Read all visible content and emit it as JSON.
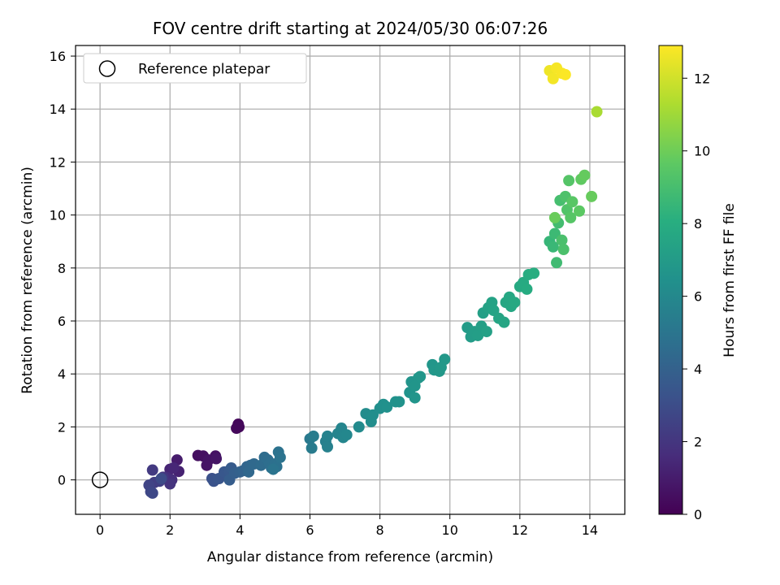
{
  "chart_data": {
    "type": "scatter",
    "title": "FOV centre drift starting at 2024/05/30 06:07:26",
    "xlabel": "Angular distance from reference (arcmin)",
    "ylabel": "Rotation from reference (arcmin)",
    "xlim": [
      -0.7,
      15
    ],
    "ylim": [
      -1.3,
      16.4
    ],
    "xticks": [
      0,
      2,
      4,
      6,
      8,
      10,
      12,
      14
    ],
    "yticks": [
      0,
      2,
      4,
      6,
      8,
      10,
      12,
      14,
      16
    ],
    "grid": true,
    "legend": {
      "placement": "top-left",
      "entries": [
        "Reference platepar"
      ]
    },
    "reference_point": {
      "x": 0,
      "y": 0,
      "label": "Reference platepar"
    },
    "colorbar": {
      "label": "Hours from first FF file",
      "range": [
        0,
        12.9
      ],
      "ticks": [
        0,
        2,
        4,
        6,
        8,
        10,
        12
      ],
      "colormap": "viridis"
    },
    "points": [
      {
        "x": 3.95,
        "y": 2.1,
        "c": 0.2
      },
      {
        "x": 3.9,
        "y": 1.95,
        "c": 0.3
      },
      {
        "x": 3.97,
        "y": 2.0,
        "c": 0.25
      },
      {
        "x": 2.8,
        "y": 0.92,
        "c": 0.5
      },
      {
        "x": 2.95,
        "y": 0.9,
        "c": 0.55
      },
      {
        "x": 3.1,
        "y": 0.75,
        "c": 0.65
      },
      {
        "x": 3.05,
        "y": 0.55,
        "c": 0.7
      },
      {
        "x": 3.3,
        "y": 0.9,
        "c": 0.6
      },
      {
        "x": 3.32,
        "y": 0.8,
        "c": 0.75
      },
      {
        "x": 2.2,
        "y": 0.75,
        "c": 1.0
      },
      {
        "x": 2.25,
        "y": 0.32,
        "c": 1.2
      },
      {
        "x": 2.0,
        "y": 0.4,
        "c": 1.3
      },
      {
        "x": 2.1,
        "y": 0.45,
        "c": 1.4
      },
      {
        "x": 1.9,
        "y": 0.1,
        "c": 1.6
      },
      {
        "x": 2.05,
        "y": 0.0,
        "c": 1.7
      },
      {
        "x": 2.0,
        "y": -0.15,
        "c": 1.9
      },
      {
        "x": 1.8,
        "y": 0.1,
        "c": 2.0
      },
      {
        "x": 1.5,
        "y": 0.37,
        "c": 2.2
      },
      {
        "x": 1.55,
        "y": -0.1,
        "c": 2.3
      },
      {
        "x": 1.7,
        "y": -0.05,
        "c": 2.4
      },
      {
        "x": 1.4,
        "y": -0.2,
        "c": 2.6
      },
      {
        "x": 1.45,
        "y": -0.45,
        "c": 2.7
      },
      {
        "x": 1.5,
        "y": -0.5,
        "c": 2.8
      },
      {
        "x": 1.75,
        "y": 0.05,
        "c": 2.9
      },
      {
        "x": 3.2,
        "y": 0.05,
        "c": 3.2
      },
      {
        "x": 3.25,
        "y": -0.05,
        "c": 3.3
      },
      {
        "x": 3.4,
        "y": 0.05,
        "c": 3.4
      },
      {
        "x": 3.55,
        "y": 0.3,
        "c": 3.5
      },
      {
        "x": 3.7,
        "y": 0.35,
        "c": 3.6
      },
      {
        "x": 3.75,
        "y": 0.45,
        "c": 3.7
      },
      {
        "x": 3.7,
        "y": 0.0,
        "c": 3.8
      },
      {
        "x": 3.85,
        "y": 0.25,
        "c": 3.9
      },
      {
        "x": 4.0,
        "y": 0.3,
        "c": 4.0
      },
      {
        "x": 4.1,
        "y": 0.35,
        "c": 4.1
      },
      {
        "x": 4.2,
        "y": 0.5,
        "c": 4.2
      },
      {
        "x": 4.3,
        "y": 0.55,
        "c": 4.3
      },
      {
        "x": 4.25,
        "y": 0.3,
        "c": 4.35
      },
      {
        "x": 4.4,
        "y": 0.6,
        "c": 4.4
      },
      {
        "x": 4.6,
        "y": 0.55,
        "c": 4.5
      },
      {
        "x": 4.7,
        "y": 0.85,
        "c": 4.55
      },
      {
        "x": 4.8,
        "y": 0.75,
        "c": 4.6
      },
      {
        "x": 4.85,
        "y": 0.6,
        "c": 4.65
      },
      {
        "x": 4.9,
        "y": 0.45,
        "c": 4.7
      },
      {
        "x": 5.0,
        "y": 0.6,
        "c": 4.75
      },
      {
        "x": 5.05,
        "y": 0.5,
        "c": 4.8
      },
      {
        "x": 5.1,
        "y": 1.05,
        "c": 4.85
      },
      {
        "x": 5.15,
        "y": 0.85,
        "c": 4.9
      },
      {
        "x": 4.95,
        "y": 0.4,
        "c": 4.95
      },
      {
        "x": 6.0,
        "y": 1.55,
        "c": 5.2
      },
      {
        "x": 6.05,
        "y": 1.2,
        "c": 5.3
      },
      {
        "x": 6.1,
        "y": 1.65,
        "c": 5.35
      },
      {
        "x": 6.45,
        "y": 1.45,
        "c": 5.5
      },
      {
        "x": 6.5,
        "y": 1.25,
        "c": 5.6
      },
      {
        "x": 6.5,
        "y": 1.65,
        "c": 5.65
      },
      {
        "x": 6.8,
        "y": 1.75,
        "c": 5.75
      },
      {
        "x": 6.9,
        "y": 1.95,
        "c": 5.85
      },
      {
        "x": 6.95,
        "y": 1.6,
        "c": 5.9
      },
      {
        "x": 7.05,
        "y": 1.7,
        "c": 5.95
      },
      {
        "x": 7.4,
        "y": 2.0,
        "c": 6.1
      },
      {
        "x": 7.6,
        "y": 2.5,
        "c": 6.2
      },
      {
        "x": 7.75,
        "y": 2.2,
        "c": 6.25
      },
      {
        "x": 7.8,
        "y": 2.45,
        "c": 6.3
      },
      {
        "x": 8.0,
        "y": 2.7,
        "c": 6.35
      },
      {
        "x": 8.1,
        "y": 2.85,
        "c": 6.4
      },
      {
        "x": 8.2,
        "y": 2.75,
        "c": 6.45
      },
      {
        "x": 8.45,
        "y": 2.95,
        "c": 6.5
      },
      {
        "x": 8.55,
        "y": 2.95,
        "c": 6.52
      },
      {
        "x": 8.85,
        "y": 3.3,
        "c": 6.55
      },
      {
        "x": 8.9,
        "y": 3.7,
        "c": 6.6
      },
      {
        "x": 9.0,
        "y": 3.1,
        "c": 6.65
      },
      {
        "x": 9.0,
        "y": 3.55,
        "c": 6.68
      },
      {
        "x": 9.1,
        "y": 3.85,
        "c": 6.7
      },
      {
        "x": 9.15,
        "y": 3.9,
        "c": 6.72
      },
      {
        "x": 9.5,
        "y": 4.35,
        "c": 6.75
      },
      {
        "x": 9.55,
        "y": 4.15,
        "c": 6.78
      },
      {
        "x": 9.7,
        "y": 4.1,
        "c": 6.8
      },
      {
        "x": 9.75,
        "y": 4.25,
        "c": 6.82
      },
      {
        "x": 9.85,
        "y": 4.55,
        "c": 6.85
      },
      {
        "x": 10.5,
        "y": 5.75,
        "c": 7.0
      },
      {
        "x": 10.6,
        "y": 5.4,
        "c": 7.05
      },
      {
        "x": 10.7,
        "y": 5.6,
        "c": 7.1
      },
      {
        "x": 10.8,
        "y": 5.45,
        "c": 7.15
      },
      {
        "x": 10.9,
        "y": 5.8,
        "c": 7.2
      },
      {
        "x": 10.95,
        "y": 6.3,
        "c": 7.25
      },
      {
        "x": 11.05,
        "y": 5.6,
        "c": 7.3
      },
      {
        "x": 11.1,
        "y": 6.5,
        "c": 7.35
      },
      {
        "x": 11.2,
        "y": 6.7,
        "c": 7.4
      },
      {
        "x": 11.25,
        "y": 6.4,
        "c": 7.45
      },
      {
        "x": 11.4,
        "y": 6.1,
        "c": 7.5
      },
      {
        "x": 11.55,
        "y": 5.95,
        "c": 7.55
      },
      {
        "x": 11.6,
        "y": 6.7,
        "c": 7.6
      },
      {
        "x": 11.7,
        "y": 6.9,
        "c": 7.65
      },
      {
        "x": 11.75,
        "y": 6.55,
        "c": 7.7
      },
      {
        "x": 11.85,
        "y": 6.7,
        "c": 7.75
      },
      {
        "x": 12.0,
        "y": 7.3,
        "c": 7.8
      },
      {
        "x": 12.1,
        "y": 7.45,
        "c": 7.85
      },
      {
        "x": 12.2,
        "y": 7.2,
        "c": 7.9
      },
      {
        "x": 12.25,
        "y": 7.75,
        "c": 7.95
      },
      {
        "x": 12.4,
        "y": 7.8,
        "c": 8.0
      },
      {
        "x": 12.85,
        "y": 9.0,
        "c": 8.5
      },
      {
        "x": 12.95,
        "y": 8.8,
        "c": 8.6
      },
      {
        "x": 13.0,
        "y": 9.3,
        "c": 8.7
      },
      {
        "x": 13.05,
        "y": 8.2,
        "c": 8.8
      },
      {
        "x": 13.1,
        "y": 9.7,
        "c": 8.9
      },
      {
        "x": 13.15,
        "y": 10.55,
        "c": 9.0
      },
      {
        "x": 13.2,
        "y": 9.05,
        "c": 9.1
      },
      {
        "x": 13.25,
        "y": 8.7,
        "c": 9.15
      },
      {
        "x": 13.3,
        "y": 10.7,
        "c": 9.2
      },
      {
        "x": 13.35,
        "y": 10.2,
        "c": 9.3
      },
      {
        "x": 13.4,
        "y": 11.3,
        "c": 9.4
      },
      {
        "x": 13.45,
        "y": 9.9,
        "c": 9.45
      },
      {
        "x": 13.5,
        "y": 10.5,
        "c": 9.5
      },
      {
        "x": 13.7,
        "y": 10.15,
        "c": 9.6
      },
      {
        "x": 13.75,
        "y": 11.35,
        "c": 9.7
      },
      {
        "x": 13.85,
        "y": 11.5,
        "c": 9.8
      },
      {
        "x": 14.05,
        "y": 10.7,
        "c": 9.85
      },
      {
        "x": 13.0,
        "y": 9.9,
        "c": 9.9
      },
      {
        "x": 14.2,
        "y": 13.9,
        "c": 11.2
      },
      {
        "x": 12.85,
        "y": 15.45,
        "c": 12.6
      },
      {
        "x": 12.95,
        "y": 15.15,
        "c": 12.7
      },
      {
        "x": 13.05,
        "y": 15.55,
        "c": 12.75
      },
      {
        "x": 13.2,
        "y": 15.35,
        "c": 12.8
      },
      {
        "x": 13.3,
        "y": 15.3,
        "c": 12.85
      }
    ]
  }
}
